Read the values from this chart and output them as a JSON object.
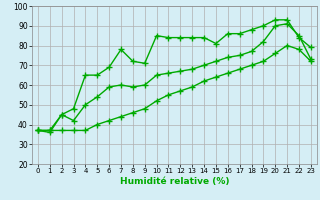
{
  "title": "",
  "xlabel": "Humidité relative (%)",
  "ylabel": "",
  "xlim": [
    -0.5,
    23.5
  ],
  "ylim": [
    20,
    100
  ],
  "xticks": [
    0,
    1,
    2,
    3,
    4,
    5,
    6,
    7,
    8,
    9,
    10,
    11,
    12,
    13,
    14,
    15,
    16,
    17,
    18,
    19,
    20,
    21,
    22,
    23
  ],
  "yticks": [
    20,
    30,
    40,
    50,
    60,
    70,
    80,
    90,
    100
  ],
  "bg_color": "#d5eef5",
  "grid_color": "#b0b0b0",
  "line_color": "#00aa00",
  "line1": [
    37,
    36,
    45,
    48,
    65,
    65,
    69,
    78,
    72,
    71,
    85,
    84,
    84,
    84,
    84,
    81,
    86,
    86,
    88,
    90,
    93,
    93,
    84,
    79
  ],
  "line2": [
    37,
    37,
    45,
    42,
    50,
    54,
    59,
    60,
    59,
    60,
    65,
    66,
    67,
    68,
    70,
    72,
    74,
    75,
    77,
    82,
    90,
    91,
    85,
    73
  ],
  "line3": [
    37,
    37,
    37,
    37,
    37,
    40,
    42,
    44,
    46,
    48,
    52,
    55,
    57,
    59,
    62,
    64,
    66,
    68,
    70,
    72,
    76,
    80,
    78,
    72
  ],
  "marker": "+",
  "markersize": 4,
  "linewidth": 1.0
}
